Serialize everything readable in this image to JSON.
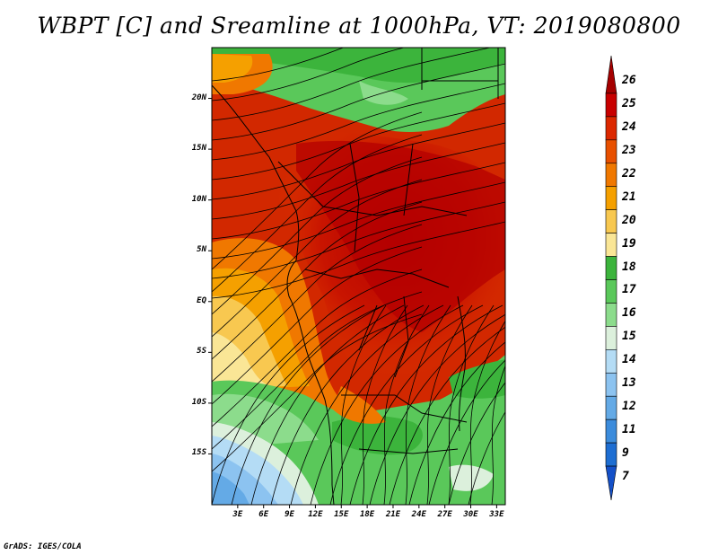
{
  "title": "WBPT [C] and Sreamline at 1000hPa, VT: 2019080800",
  "footer": "GrADS: IGES/COLA",
  "map": {
    "lat_labels": [
      "20N",
      "15N",
      "10N",
      "5N",
      "EQ",
      "5S",
      "10S",
      "15S"
    ],
    "lon_labels": [
      "3E",
      "6E",
      "9E",
      "12E",
      "15E",
      "18E",
      "21E",
      "24E",
      "27E",
      "30E",
      "33E"
    ],
    "lat_range": [
      -20,
      25
    ],
    "lon_range": [
      0,
      34
    ]
  },
  "colorbar": {
    "levels": [
      "26",
      "25",
      "24",
      "23",
      "22",
      "21",
      "20",
      "19",
      "18",
      "17",
      "16",
      "15",
      "14",
      "13",
      "12",
      "11",
      "9",
      "7"
    ],
    "colors": [
      "#a50000",
      "#c80000",
      "#dc2800",
      "#e85000",
      "#f07800",
      "#f5a000",
      "#f8c850",
      "#fae696",
      "#3cb43c",
      "#5ac85a",
      "#8cdc8c",
      "#dcf0dc",
      "#b4dcf5",
      "#8cc3f0",
      "#64aae6",
      "#3c8cdc",
      "#1e6ed2",
      "#1450c8"
    ]
  }
}
